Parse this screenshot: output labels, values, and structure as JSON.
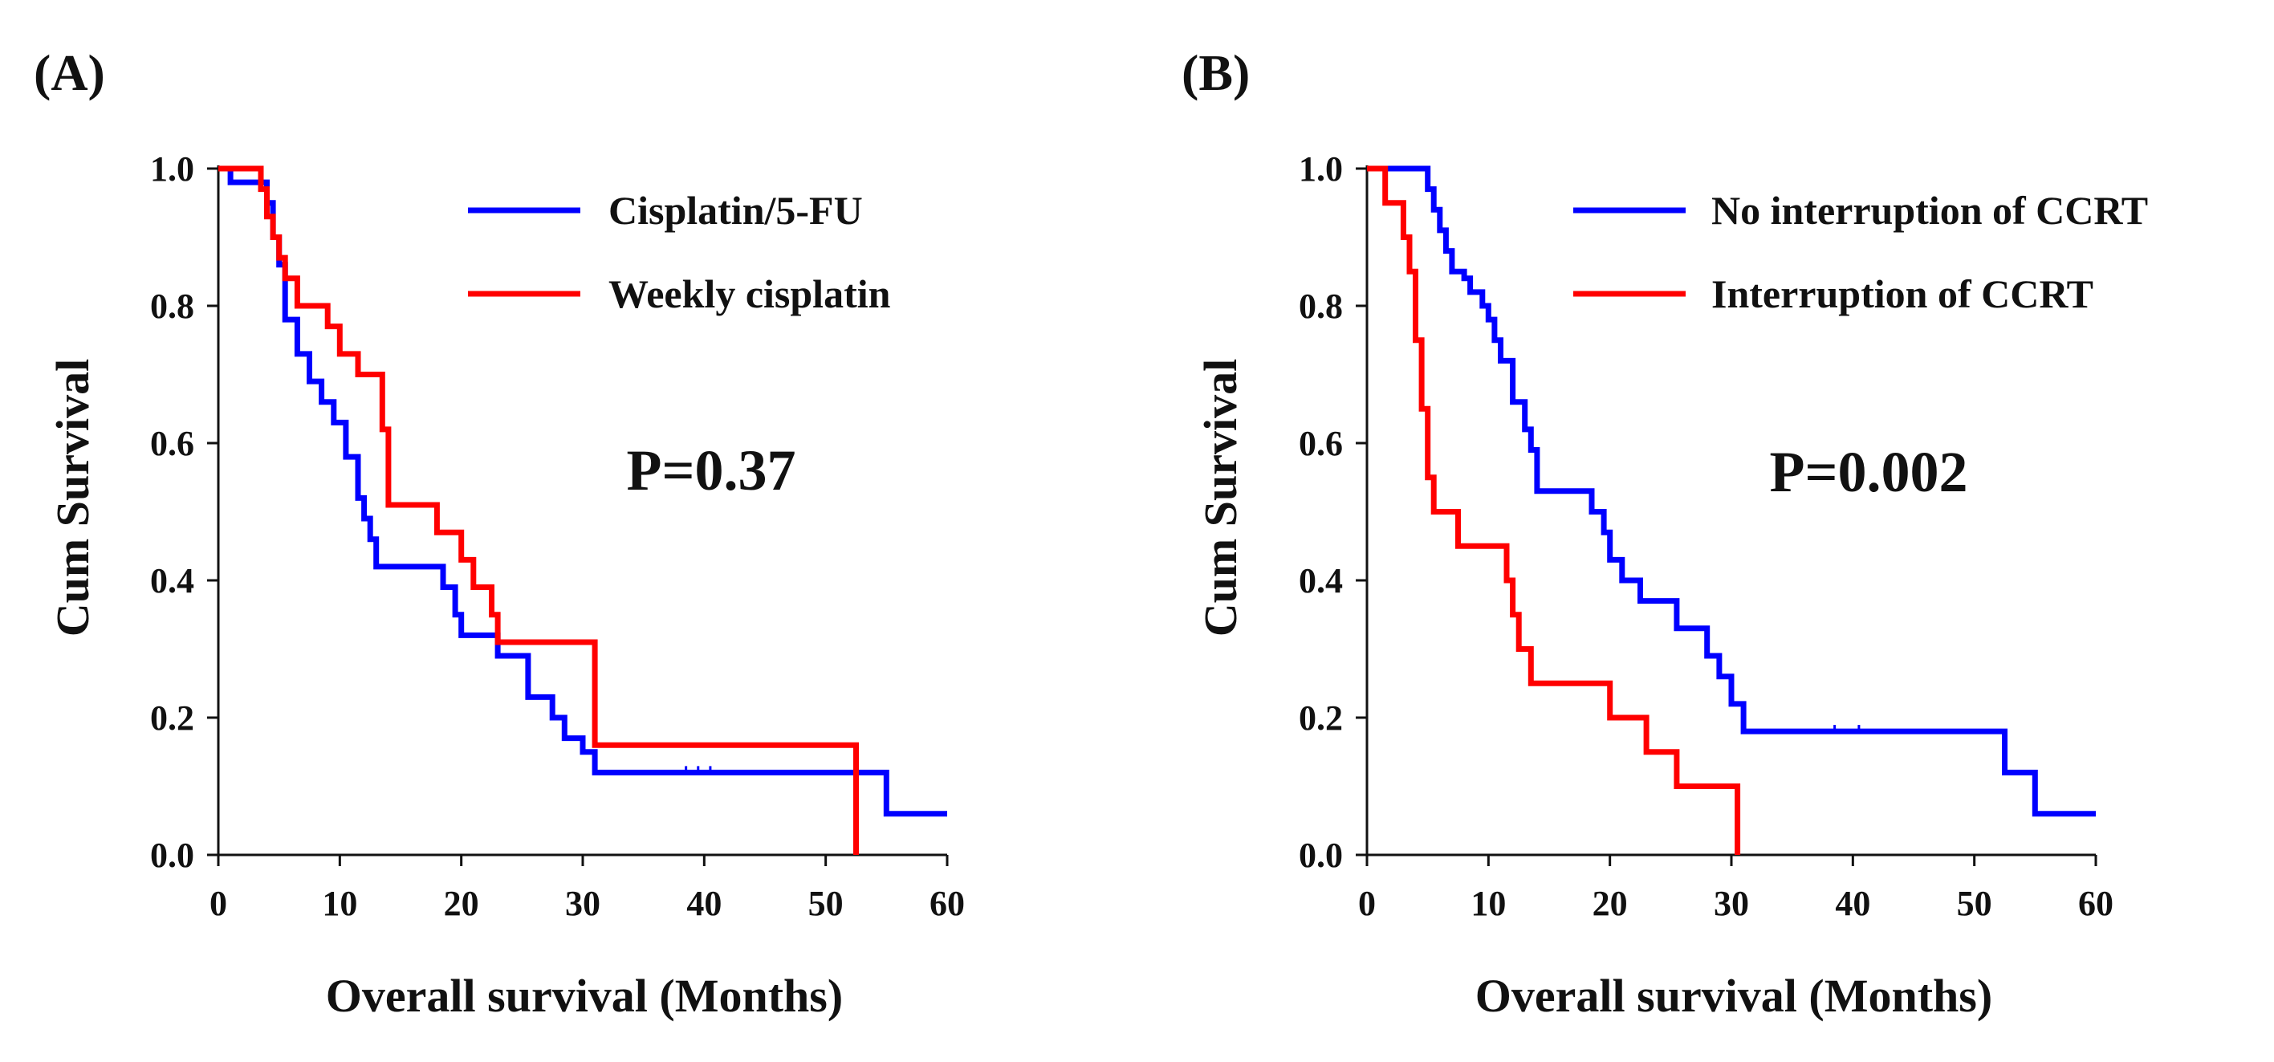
{
  "colors": {
    "series_a": "#0000ff",
    "series_b": "#ff0000",
    "axis": "#111111"
  },
  "chart_data": [
    {
      "type": "line",
      "panel_label": "(A)",
      "xlabel": "Overall survival (Months)",
      "ylabel": "Cum Survival",
      "xlim": [
        0,
        60
      ],
      "ylim": [
        0,
        1
      ],
      "xticks": [
        "0",
        "10",
        "20",
        "30",
        "40",
        "50",
        "60"
      ],
      "yticks": [
        "0.0",
        "0.2",
        "0.4",
        "0.6",
        "0.8",
        "1.0"
      ],
      "p_value": "P=0.37",
      "legend_position": "top-right",
      "series": [
        {
          "name": "Cisplatin/5-FU",
          "color": "#0000ff",
          "steps": [
            [
              0,
              1.0
            ],
            [
              1,
              1.0
            ],
            [
              1,
              0.98
            ],
            [
              3,
              0.98
            ],
            [
              4,
              0.95
            ],
            [
              4.5,
              0.9
            ],
            [
              5,
              0.86
            ],
            [
              5.5,
              0.78
            ],
            [
              6.5,
              0.73
            ],
            [
              7.5,
              0.69
            ],
            [
              8.5,
              0.66
            ],
            [
              9.5,
              0.63
            ],
            [
              10.5,
              0.58
            ],
            [
              11.5,
              0.52
            ],
            [
              12,
              0.49
            ],
            [
              12.5,
              0.46
            ],
            [
              13,
              0.42
            ],
            [
              17,
              0.42
            ],
            [
              18.5,
              0.39
            ],
            [
              19.5,
              0.35
            ],
            [
              20,
              0.32
            ],
            [
              22,
              0.32
            ],
            [
              23,
              0.29
            ],
            [
              25.5,
              0.23
            ],
            [
              27.5,
              0.2
            ],
            [
              28.5,
              0.17
            ],
            [
              30,
              0.15
            ],
            [
              31,
              0.12
            ],
            [
              55,
              0.12
            ],
            [
              55,
              0.06
            ],
            [
              60,
              0.06
            ]
          ],
          "censor_ticks": [
            [
              38.5,
              0.12
            ],
            [
              39.5,
              0.12
            ],
            [
              40.5,
              0.12
            ]
          ]
        },
        {
          "name": "Weekly cisplatin",
          "color": "#ff0000",
          "steps": [
            [
              0,
              1.0
            ],
            [
              3,
              1.0
            ],
            [
              3.5,
              0.97
            ],
            [
              4,
              0.93
            ],
            [
              4.5,
              0.9
            ],
            [
              5,
              0.87
            ],
            [
              5.5,
              0.84
            ],
            [
              6.5,
              0.8
            ],
            [
              9,
              0.77
            ],
            [
              10,
              0.73
            ],
            [
              11.5,
              0.7
            ],
            [
              13.5,
              0.62
            ],
            [
              14,
              0.51
            ],
            [
              18,
              0.47
            ],
            [
              20,
              0.43
            ],
            [
              21,
              0.39
            ],
            [
              22.5,
              0.35
            ],
            [
              23,
              0.31
            ],
            [
              31,
              0.31
            ],
            [
              31,
              0.16
            ],
            [
              52.5,
              0.16
            ],
            [
              52.5,
              0.0
            ]
          ],
          "censor_ticks": []
        }
      ]
    },
    {
      "type": "line",
      "panel_label": "(B)",
      "xlabel": "Overall survival (Months)",
      "ylabel": "Cum Survival",
      "xlim": [
        0,
        60
      ],
      "ylim": [
        0,
        1
      ],
      "xticks": [
        "0",
        "10",
        "20",
        "30",
        "40",
        "50",
        "60"
      ],
      "yticks": [
        "0.0",
        "0.2",
        "0.4",
        "0.6",
        "0.8",
        "1.0"
      ],
      "p_value": "P=0.002",
      "legend_position": "top-right",
      "series": [
        {
          "name": "No interruption of CCRT",
          "color": "#0000ff",
          "steps": [
            [
              0,
              1.0
            ],
            [
              4.5,
              1.0
            ],
            [
              5,
              0.97
            ],
            [
              5.5,
              0.94
            ],
            [
              6,
              0.91
            ],
            [
              6.5,
              0.88
            ],
            [
              7,
              0.85
            ],
            [
              8,
              0.84
            ],
            [
              8.5,
              0.82
            ],
            [
              9.5,
              0.8
            ],
            [
              10,
              0.78
            ],
            [
              10.5,
              0.75
            ],
            [
              11,
              0.72
            ],
            [
              12,
              0.66
            ],
            [
              13,
              0.62
            ],
            [
              13.5,
              0.59
            ],
            [
              14,
              0.53
            ],
            [
              18.5,
              0.5
            ],
            [
              19.5,
              0.47
            ],
            [
              20,
              0.43
            ],
            [
              21,
              0.4
            ],
            [
              22.5,
              0.37
            ],
            [
              25.5,
              0.33
            ],
            [
              28,
              0.29
            ],
            [
              29,
              0.26
            ],
            [
              30,
              0.22
            ],
            [
              31,
              0.18
            ],
            [
              52.5,
              0.18
            ],
            [
              52.5,
              0.12
            ],
            [
              55,
              0.12
            ],
            [
              55,
              0.06
            ],
            [
              60,
              0.06
            ]
          ],
          "censor_ticks": [
            [
              38.5,
              0.18
            ],
            [
              40.5,
              0.18
            ]
          ]
        },
        {
          "name": "Interruption of CCRT",
          "color": "#ff0000",
          "steps": [
            [
              0,
              1.0
            ],
            [
              1,
              1.0
            ],
            [
              1.5,
              0.95
            ],
            [
              3,
              0.9
            ],
            [
              3.5,
              0.85
            ],
            [
              4,
              0.75
            ],
            [
              4.5,
              0.65
            ],
            [
              5,
              0.55
            ],
            [
              5.5,
              0.5
            ],
            [
              7.5,
              0.45
            ],
            [
              11.5,
              0.4
            ],
            [
              12,
              0.35
            ],
            [
              12.5,
              0.3
            ],
            [
              13.5,
              0.25
            ],
            [
              20,
              0.2
            ],
            [
              23,
              0.15
            ],
            [
              25.5,
              0.1
            ],
            [
              30.5,
              0.1
            ],
            [
              30.5,
              0.0
            ]
          ],
          "censor_ticks": []
        }
      ]
    }
  ]
}
